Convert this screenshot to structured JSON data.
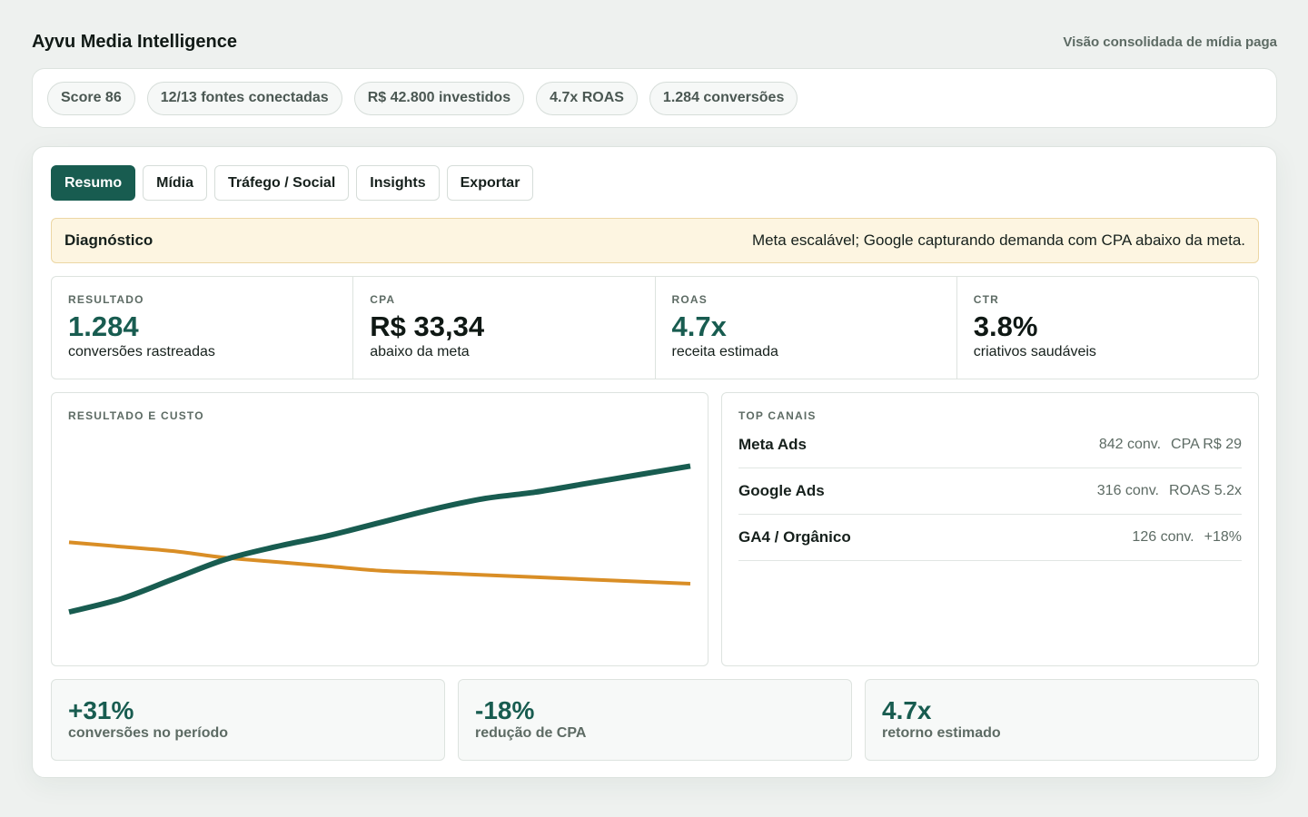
{
  "header": {
    "title": "Ayvu Media Intelligence",
    "subtitle": "Visão consolidada de mídia paga"
  },
  "pills": [
    "Score 86",
    "12/13 fontes conectadas",
    "R$ 42.800 investidos",
    "4.7x ROAS",
    "1.284 conversões"
  ],
  "tabs": [
    {
      "label": "Resumo",
      "active": true
    },
    {
      "label": "Mídia",
      "active": false
    },
    {
      "label": "Tráfego / Social",
      "active": false
    },
    {
      "label": "Insights",
      "active": false
    },
    {
      "label": "Exportar",
      "active": false
    }
  ],
  "diagnostic": {
    "title": "Diagnóstico",
    "text": "Meta escalável; Google capturando demanda com CPA abaixo da meta."
  },
  "kpis": [
    {
      "label": "RESULTADO",
      "value": "1.284",
      "sub": "conversões rastreadas"
    },
    {
      "label": "CPA",
      "value": "R$ 33,34",
      "sub": "abaixo da meta"
    },
    {
      "label": "ROAS",
      "value": "4.7x",
      "sub": "receita estimada"
    },
    {
      "label": "CTR",
      "value": "3.8%",
      "sub": "criativos saudáveis"
    }
  ],
  "chart": {
    "label": "RESULTADO E CUSTO"
  },
  "chart_data": {
    "type": "line",
    "title": "RESULTADO E CUSTO",
    "x": [
      0,
      1,
      2,
      3,
      4,
      5,
      6,
      7,
      8,
      9,
      10,
      11,
      12
    ],
    "ylim": [
      0,
      100
    ],
    "grid": false,
    "series": [
      {
        "values": [
          12,
          18,
          27,
          36,
          42,
          47,
          53,
          59,
          64,
          67,
          71,
          75,
          79
        ],
        "color": "#185c50"
      },
      {
        "values": [
          44,
          42,
          40,
          37,
          35,
          33,
          31,
          30,
          29,
          28,
          27,
          26,
          25
        ],
        "color": "#d98e26"
      }
    ]
  },
  "channels": {
    "label": "TOP CANAIS",
    "items": [
      {
        "name": "Meta Ads",
        "conv": "842 conv.",
        "metric": "CPA R$ 29"
      },
      {
        "name": "Google Ads",
        "conv": "316 conv.",
        "metric": "ROAS 5.2x"
      },
      {
        "name": "GA4 / Orgânico",
        "conv": "126 conv.",
        "metric": "+18%"
      }
    ]
  },
  "summaries": [
    {
      "value": "+31%",
      "sub": "conversões no período"
    },
    {
      "value": "-18%",
      "sub": "redução de CPA"
    },
    {
      "value": "4.7x",
      "sub": "retorno estimado"
    }
  ]
}
